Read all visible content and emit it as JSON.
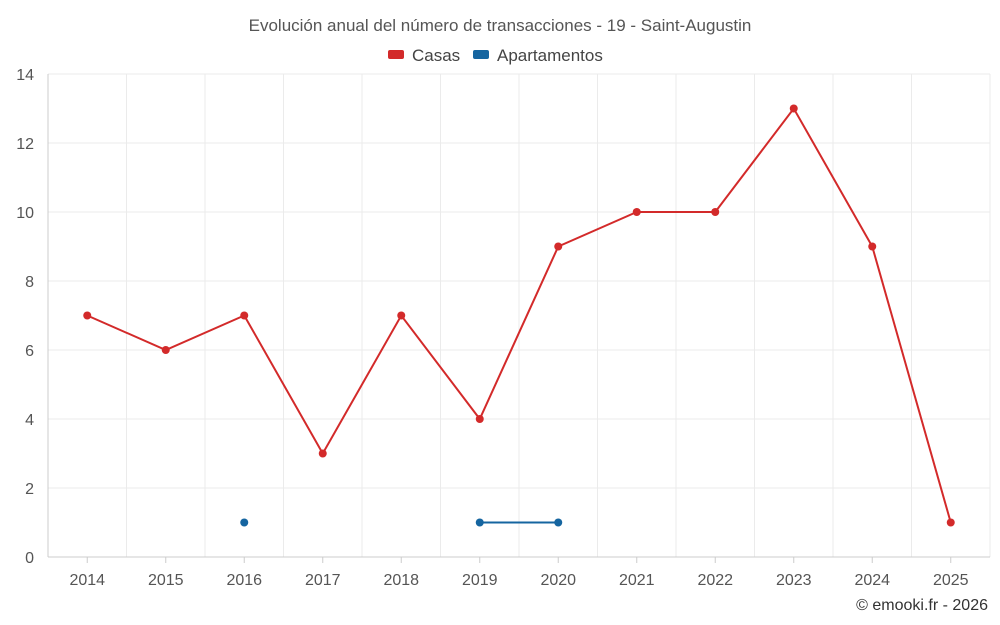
{
  "chart_data": {
    "type": "line",
    "title": "Evolución anual del número de transacciones - 19 - Saint-Augustin",
    "categories": [
      "2014",
      "2015",
      "2016",
      "2017",
      "2018",
      "2019",
      "2020",
      "2021",
      "2022",
      "2023",
      "2024",
      "2025"
    ],
    "series": [
      {
        "name": "Casas",
        "color": "#d32a2a",
        "values": [
          7,
          6,
          7,
          3,
          7,
          4,
          9,
          10,
          10,
          13,
          9,
          1
        ]
      },
      {
        "name": "Apartamentos",
        "color": "#1565a0",
        "values": [
          null,
          null,
          1,
          null,
          null,
          1,
          1,
          null,
          null,
          null,
          null,
          null
        ]
      }
    ],
    "ylim": [
      0,
      14
    ],
    "yticks": [
      "0",
      "2",
      "4",
      "6",
      "8",
      "10",
      "12",
      "14"
    ],
    "grid": true,
    "legend": "top-center",
    "xlabel": "",
    "ylabel": ""
  },
  "credit": "© emooki.fr - 2026"
}
